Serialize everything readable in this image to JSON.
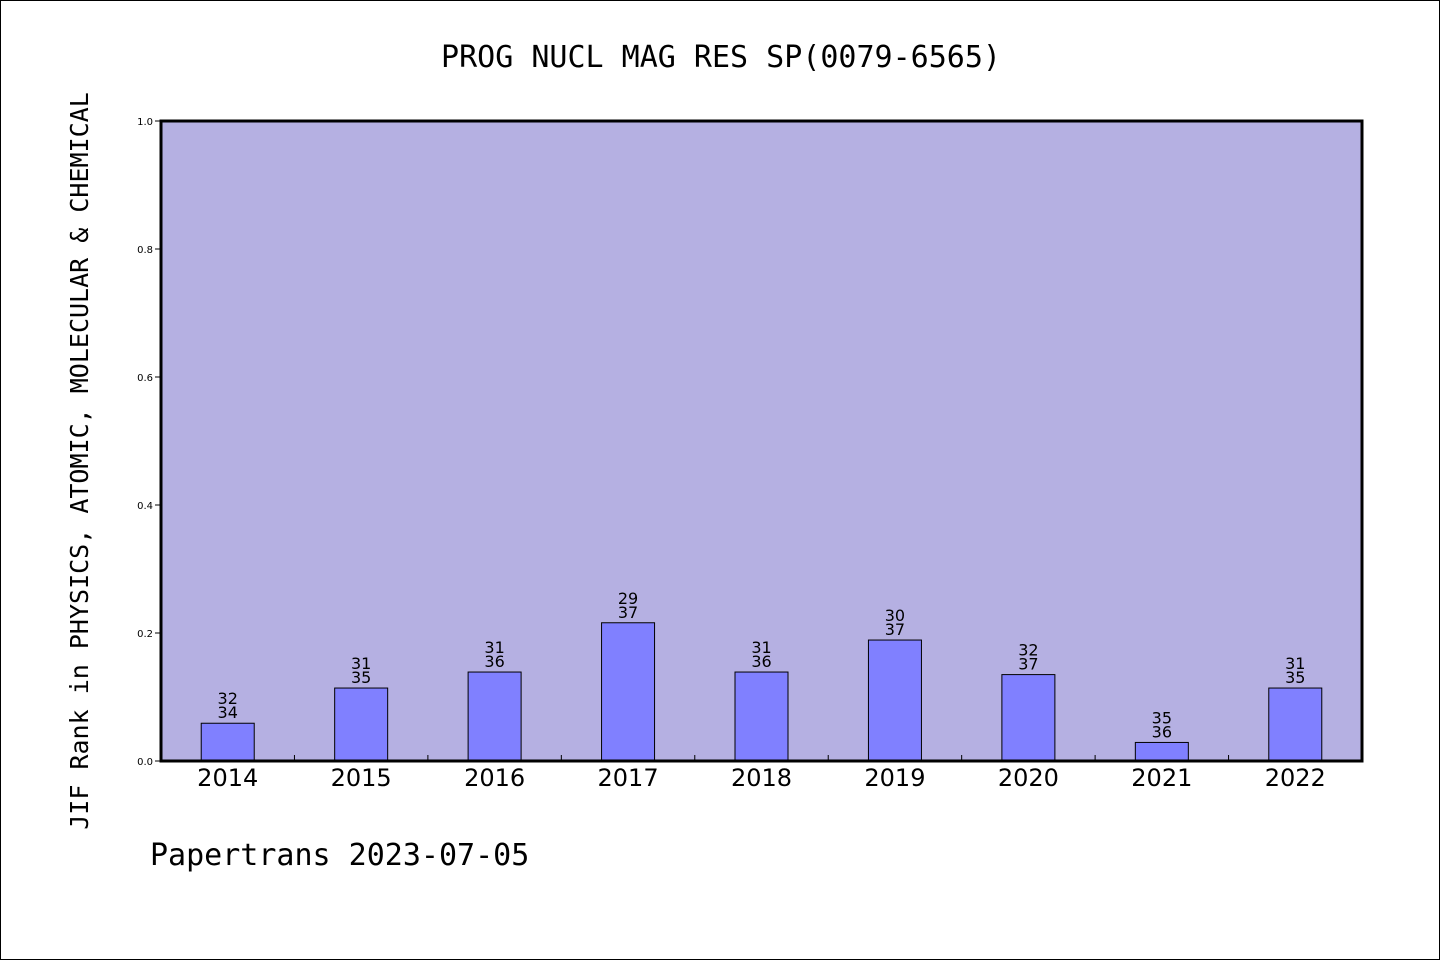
{
  "chart_data": {
    "type": "bar",
    "title": "PROG NUCL MAG RES SP(0079-6565)",
    "ylabel": "JIF Rank in PHYSICS, ATOMIC, MOLECULAR & CHEMICAL",
    "xlabel": "",
    "footer": "Papertrans 2023-07-05",
    "ylim": [
      0,
      1.0
    ],
    "yticks": [
      "0.0",
      "0.2",
      "0.4",
      "0.6",
      "0.8",
      "1.0"
    ],
    "grid": false,
    "categories": [
      "2014",
      "2015",
      "2016",
      "2017",
      "2018",
      "2019",
      "2020",
      "2021",
      "2022"
    ],
    "values": [
      0.059,
      0.114,
      0.139,
      0.216,
      0.139,
      0.189,
      0.135,
      0.029,
      0.114
    ],
    "rank": [
      "32",
      "31",
      "31",
      "29",
      "31",
      "30",
      "32",
      "35",
      "31"
    ],
    "total": [
      "34",
      "35",
      "36",
      "37",
      "36",
      "37",
      "37",
      "36",
      "35"
    ],
    "colors": {
      "plot_background": "#b5b0e2",
      "bar_fill": "#8080ff",
      "bar_stroke": "#000000",
      "axis": "#000000"
    }
  }
}
